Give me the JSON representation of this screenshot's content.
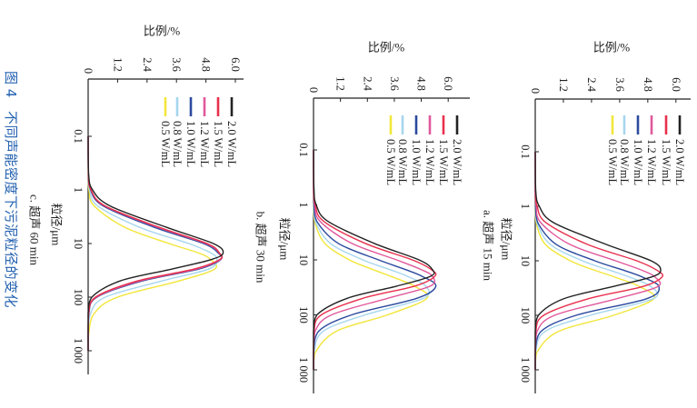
{
  "caption": {
    "number": "图 4",
    "text": "不同声能密度下污泥粒径的变化"
  },
  "chart_data": [
    {
      "type": "line",
      "subtitle": "a. 超声 15 min",
      "xlabel": "粒径/μm",
      "ylabel": "比例/%",
      "xscale": "log",
      "xlim": [
        0.1,
        1500
      ],
      "ylim": [
        0,
        6.6
      ],
      "xticks": [
        "0.1",
        "1",
        "10",
        "100",
        "1 000"
      ],
      "yticks": [
        "0",
        "1.2",
        "2.4",
        "3.6",
        "4.8",
        "6.0"
      ],
      "grid": false,
      "legend_position": "top-right",
      "x": [
        0.1,
        0.5,
        1,
        2,
        5,
        10,
        15,
        20,
        30,
        50,
        100,
        200,
        500,
        1000
      ],
      "series": [
        {
          "name": "2.0 W/mL",
          "color": "#222222",
          "values": [
            0,
            0.02,
            0.17,
            0.79,
            3.02,
            4.94,
            5.35,
            4.93,
            3.28,
            1.2,
            0.13,
            0,
            0,
            0
          ]
        },
        {
          "name": "1.5 W/mL",
          "color": "#e8304c",
          "values": [
            0,
            0.01,
            0.08,
            0.46,
            2.22,
            4.33,
            5.2,
            5.4,
            4.55,
            2.24,
            0.36,
            0.02,
            0,
            0
          ]
        },
        {
          "name": "1.2 W/mL",
          "color": "#e0589c",
          "values": [
            0,
            0,
            0.04,
            0.24,
            1.47,
            3.43,
            4.57,
            5.12,
            5.21,
            3.44,
            0.82,
            0.07,
            0,
            0
          ]
        },
        {
          "name": "1.0 W/mL",
          "color": "#2b4a9e",
          "values": [
            0,
            0,
            0.01,
            0.11,
            0.89,
            2.54,
            3.79,
            4.59,
            5.28,
            4.73,
            1.74,
            0.23,
            0,
            0
          ]
        },
        {
          "name": "0.8 W/mL",
          "color": "#a6d6ee",
          "values": [
            0,
            0,
            0.01,
            0.07,
            0.64,
            2.01,
            3.2,
            4.04,
            4.95,
            5.02,
            2.34,
            0.4,
            0.01,
            0
          ]
        },
        {
          "name": "0.5 W/mL",
          "color": "#f2e63a",
          "values": [
            0,
            0,
            0,
            0.04,
            0.43,
            1.5,
            2.56,
            3.41,
            4.47,
            5.05,
            3.34,
            0.96,
            0.05,
            0
          ]
        }
      ]
    },
    {
      "type": "line",
      "subtitle": "b. 超声 30 min",
      "xlabel": "粒径/μm",
      "ylabel": "比例/%",
      "xscale": "log",
      "xlim": [
        0.1,
        1500
      ],
      "ylim": [
        0,
        6.6
      ],
      "xticks": [
        "0.1",
        "1",
        "10",
        "100",
        "1 000"
      ],
      "yticks": [
        "0",
        "1.2",
        "2.4",
        "3.6",
        "4.8",
        "6.0"
      ],
      "grid": false,
      "legend_position": "top-right",
      "x": [
        0.1,
        0.5,
        1,
        2,
        5,
        10,
        15,
        20,
        30,
        50,
        100,
        200,
        500,
        1000
      ],
      "series": [
        {
          "name": "2.0 W/mL",
          "color": "#222222",
          "values": [
            0,
            0.02,
            0.12,
            0.65,
            2.7,
            4.7,
            5.3,
            5.2,
            3.7,
            1.5,
            0.15,
            0,
            0,
            0
          ]
        },
        {
          "name": "1.5 W/mL",
          "color": "#e8304c",
          "values": [
            0,
            0.01,
            0.08,
            0.46,
            2.3,
            4.4,
            5.25,
            5.4,
            4.5,
            2.2,
            0.35,
            0.02,
            0,
            0
          ]
        },
        {
          "name": "1.2 W/mL",
          "color": "#e0589c",
          "values": [
            0,
            0,
            0.05,
            0.3,
            1.7,
            3.7,
            4.8,
            5.3,
            5.2,
            3.3,
            0.8,
            0.07,
            0,
            0
          ]
        },
        {
          "name": "1.0 W/mL",
          "color": "#2b4a9e",
          "values": [
            0,
            0,
            0.02,
            0.15,
            1.1,
            2.9,
            4.1,
            4.85,
            5.45,
            4.6,
            1.7,
            0.22,
            0,
            0
          ]
        },
        {
          "name": "0.8 W/mL",
          "color": "#a6d6ee",
          "values": [
            0,
            0,
            0.01,
            0.08,
            0.75,
            2.2,
            3.4,
            4.2,
            5.0,
            4.9,
            2.3,
            0.42,
            0.02,
            0
          ]
        },
        {
          "name": "0.5 W/mL",
          "color": "#f2e63a",
          "values": [
            0,
            0,
            0,
            0.05,
            0.5,
            1.6,
            2.65,
            3.45,
            4.5,
            5.05,
            3.3,
            1.0,
            0.06,
            0
          ]
        }
      ]
    },
    {
      "type": "line",
      "subtitle": "c. 超声 60 min",
      "xlabel": "粒径/μm",
      "ylabel": "比例/%",
      "xscale": "log",
      "xlim": [
        0.1,
        1500
      ],
      "ylim": [
        0,
        6.3
      ],
      "xticks": [
        "0.1",
        "1",
        "10",
        "100",
        "1 000"
      ],
      "yticks": [
        "0",
        "1.2",
        "2.4",
        "3.6",
        "4.8",
        "6.0"
      ],
      "grid": false,
      "legend_position": "top-right",
      "x": [
        0.1,
        0.5,
        1,
        2,
        5,
        10,
        15,
        20,
        30,
        50,
        100,
        200,
        500,
        1000
      ],
      "series": [
        {
          "name": "2.0 W/mL",
          "color": "#222222",
          "values": [
            0,
            0.02,
            0.18,
            0.9,
            3.2,
            5.1,
            5.5,
            5.0,
            3.4,
            1.3,
            0.15,
            0,
            0,
            0
          ]
        },
        {
          "name": "1.5 W/mL",
          "color": "#e8304c",
          "values": [
            0,
            0.01,
            0.12,
            0.7,
            2.9,
            4.85,
            5.35,
            5.35,
            4.3,
            2.0,
            0.3,
            0.02,
            0,
            0
          ]
        },
        {
          "name": "1.2 W/mL",
          "color": "#e0589c",
          "values": [
            0,
            0.01,
            0.12,
            0.68,
            2.85,
            4.8,
            5.35,
            5.38,
            4.4,
            2.1,
            0.33,
            0.02,
            0,
            0
          ]
        },
        {
          "name": "1.0 W/mL",
          "color": "#2b4a9e",
          "values": [
            0,
            0.01,
            0.1,
            0.62,
            2.7,
            4.7,
            5.3,
            5.4,
            4.5,
            2.2,
            0.36,
            0.03,
            0,
            0
          ]
        },
        {
          "name": "0.8 W/mL",
          "color": "#a6d6ee",
          "values": [
            0,
            0,
            0.06,
            0.4,
            2.1,
            4.1,
            5.0,
            5.25,
            4.9,
            3.0,
            0.7,
            0.1,
            0,
            0
          ]
        },
        {
          "name": "0.5 W/mL",
          "color": "#f2e63a",
          "values": [
            0,
            0,
            0.03,
            0.25,
            1.5,
            3.3,
            4.5,
            5.0,
            5.15,
            3.7,
            1.2,
            0.25,
            0.02,
            0
          ]
        }
      ]
    }
  ]
}
